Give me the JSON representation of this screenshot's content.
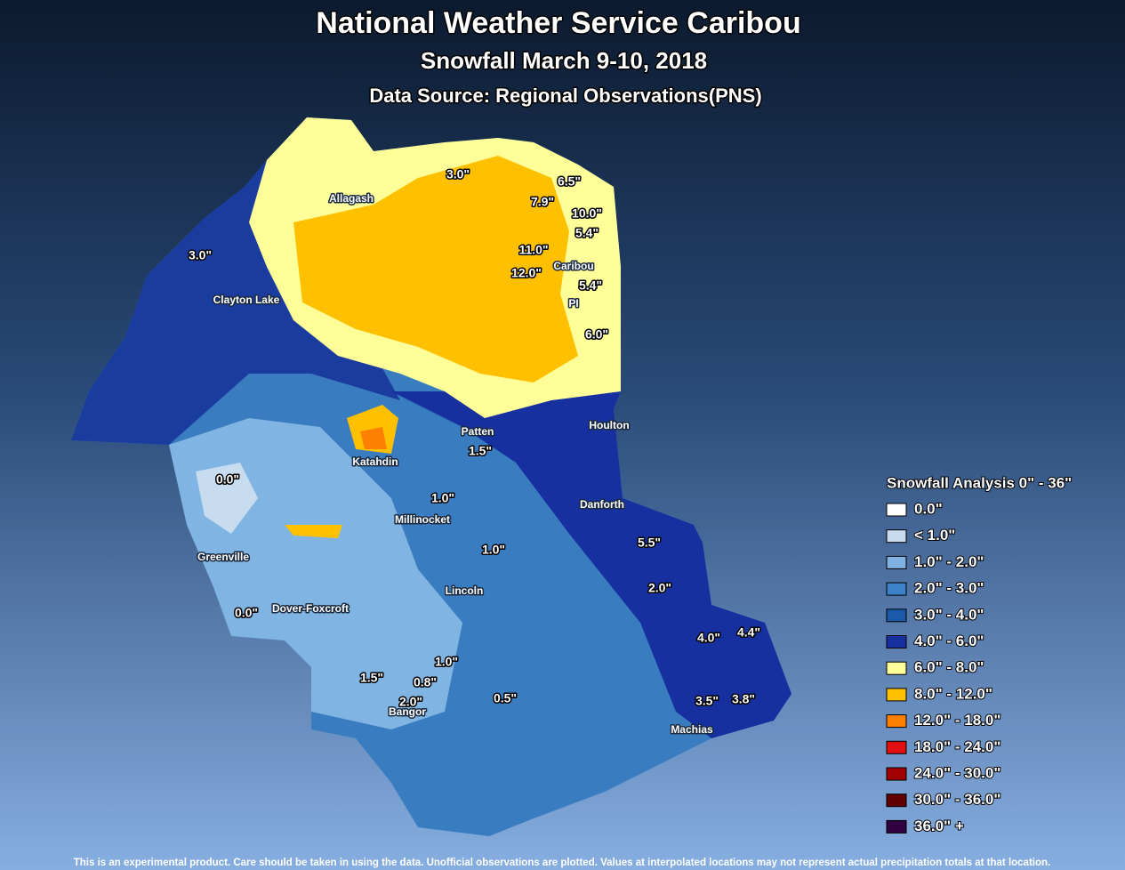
{
  "header": {
    "title": "National Weather Service Caribou",
    "subtitle": "Snowfall March 9-10, 2018",
    "source": "Data Source: Regional Observations(PNS)"
  },
  "places": [
    "Allagash",
    "Clayton Lake",
    "Caribou",
    "PI",
    "Houlton",
    "Patten",
    "Katahdin",
    "Millinocket",
    "Greenville",
    "Dover-Foxcroft",
    "Lincoln",
    "Danforth",
    "Bangor",
    "Machias"
  ],
  "observations": [
    "3.0\"",
    "6.5\"",
    "7.9\"",
    "10.0\"",
    "5.4\"",
    "11.0\"",
    "12.0\"",
    "5.4\"",
    "6.0\"",
    "3.0\"",
    "1.5\"",
    "1.0\"",
    "0.0\"",
    "1.0\"",
    "5.5\"",
    "2.0\"",
    "0.0\"",
    "4.0\"",
    "4.4\"",
    "1.0\"",
    "1.5\"",
    "0.8\"",
    "2.0\"",
    "0.5\"",
    "3.5\"",
    "3.8\""
  ],
  "legend": {
    "title": "Snowfall Analysis 0\" - 36\"",
    "items": [
      {
        "label": "0.0\"",
        "color": "#ffffff"
      },
      {
        "label": "< 1.0\"",
        "color": "#c8dcf0"
      },
      {
        "label": "1.0\" - 2.0\"",
        "color": "#7fb2e0"
      },
      {
        "label": "2.0\" - 3.0\"",
        "color": "#3c82c8"
      },
      {
        "label": "3.0\" - 4.0\"",
        "color": "#1a5aa8"
      },
      {
        "label": "4.0\" - 6.0\"",
        "color": "#1630a0"
      },
      {
        "label": "6.0\" - 8.0\"",
        "color": "#ffff99"
      },
      {
        "label": "8.0\" - 12.0\"",
        "color": "#ffc000"
      },
      {
        "label": "12.0\" - 18.0\"",
        "color": "#ff8000"
      },
      {
        "label": "18.0\" - 24.0\"",
        "color": "#e01010"
      },
      {
        "label": "24.0\" - 30.0\"",
        "color": "#a00000"
      },
      {
        "label": "30.0\" - 36.0\"",
        "color": "#600000"
      },
      {
        "label": "36.0\" +",
        "color": "#300040"
      }
    ]
  },
  "footer": "This is an experimental product. Care should be taken in using the data. Unofficial observations are plotted. Values at interpolated locations may not represent actual precipitation totals at that location."
}
